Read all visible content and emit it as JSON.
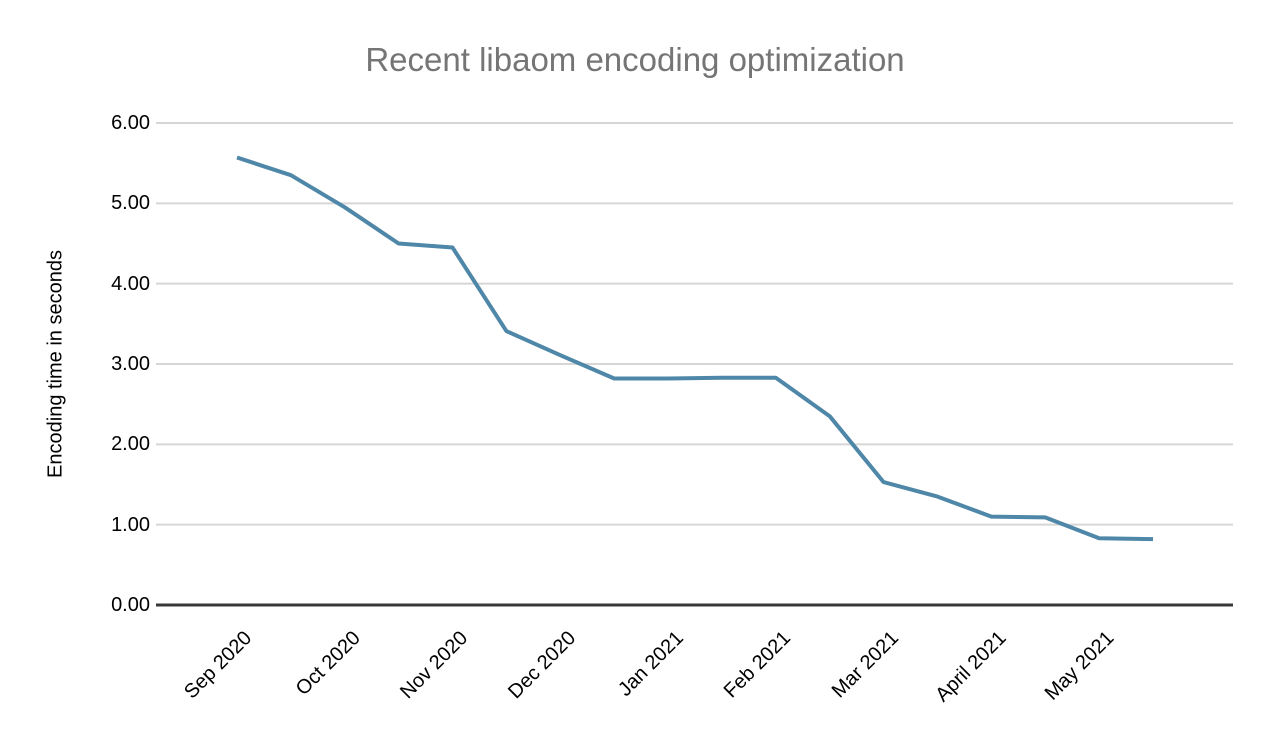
{
  "chart_data": {
    "type": "line",
    "title": "Recent libaom encoding optimization",
    "xlabel": "",
    "ylabel": "Encoding time in seconds",
    "ylim": [
      0,
      6
    ],
    "ytick_labels": [
      "0.00",
      "1.00",
      "2.00",
      "3.00",
      "4.00",
      "5.00",
      "6.00"
    ],
    "x_tick_labels": [
      "Sep 2020",
      "Oct 2020",
      "Nov 2020",
      "Dec 2020",
      "Jan 2021",
      "Feb 2021",
      "Mar 2021",
      "April 2021",
      "May 2021"
    ],
    "points_per_month": 2,
    "series": [
      {
        "name": "Encoding time in seconds",
        "color": "#4f87a8",
        "values": [
          5.57,
          5.35,
          4.95,
          4.5,
          4.45,
          3.41,
          3.11,
          2.82,
          2.82,
          2.83,
          2.83,
          2.35,
          1.53,
          1.35,
          1.1,
          1.09,
          0.83,
          0.82
        ]
      }
    ],
    "grid": true,
    "legend_position": "none",
    "background_color": "#ffffff",
    "title_color": "#757575",
    "gridline_color": "#d6d6d6",
    "axis_color": "#383838"
  }
}
